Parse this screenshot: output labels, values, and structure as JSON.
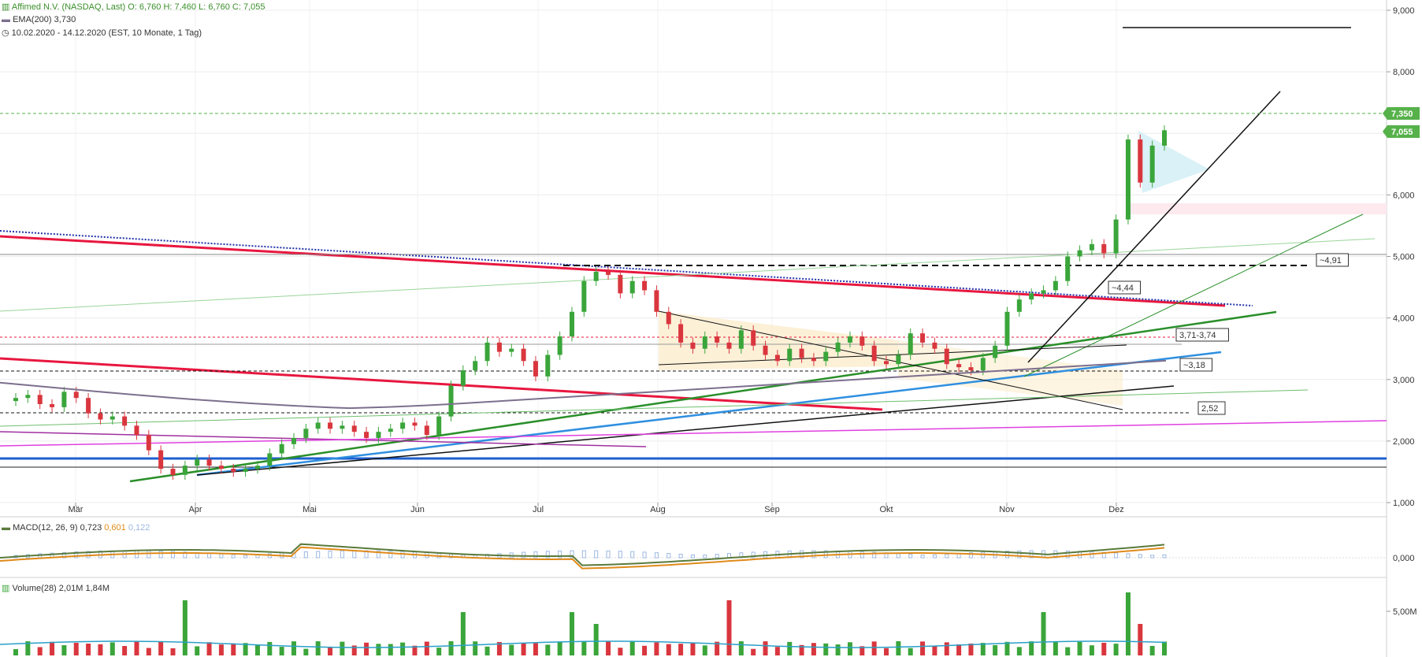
{
  "header": {
    "instrument": "Affimed N.V. (NASDAQ, Last)",
    "ohlc": "O: 6,760  H: 7,460  L: 6,760  C: 7,055",
    "ema_label": "EMA(200)",
    "ema_value": "3,730",
    "period": "10.02.2020 - 14.12.2020",
    "period_detail": "(EST, 10 Monate, 1 Tag)"
  },
  "colors": {
    "up": "#3aa53a",
    "down": "#d9363e",
    "red_line": "#e8173f",
    "blue_line": "#2f8fe0",
    "ema": "#7c6f8e",
    "magenta": "#e040e0",
    "macd": "#5a7a3a",
    "signal": "#e08a1a",
    "hist": "#9cb8e0",
    "price_badge": "#56b14a"
  },
  "chart_data": [
    {
      "type": "candlestick",
      "title": "Affimed N.V. (NASDAQ, Last)",
      "ylim": [
        1.0,
        9.0
      ],
      "yticks": [
        "1,000",
        "2,000",
        "3,000",
        "4,000",
        "5,000",
        "6,000",
        "7,000",
        "8,000",
        "9,000"
      ],
      "xticks": [
        "Mär",
        "Apr",
        "Mai",
        "Jun",
        "Jul",
        "Aug",
        "Sep",
        "Okt",
        "Nov",
        "Dez"
      ],
      "price_labels": [
        "7,350",
        "7,055"
      ],
      "annotations": [
        "~4,91",
        "~4,44",
        "3,71-3,74",
        "~3,18",
        "2,52"
      ],
      "close_path": [
        2.7,
        2.75,
        2.6,
        2.55,
        2.8,
        2.7,
        2.45,
        2.35,
        2.4,
        2.25,
        2.1,
        1.85,
        1.55,
        1.45,
        1.6,
        1.7,
        1.6,
        1.55,
        1.5,
        1.55,
        1.6,
        1.8,
        1.95,
        2.05,
        2.2,
        2.3,
        2.2,
        2.25,
        2.15,
        2.05,
        2.15,
        2.2,
        2.3,
        2.25,
        2.1,
        2.4,
        2.9,
        3.15,
        3.3,
        3.6,
        3.45,
        3.5,
        3.3,
        3.05,
        3.4,
        3.7,
        4.1,
        4.6,
        4.75,
        4.7,
        4.4,
        4.6,
        4.45,
        4.1,
        3.9,
        3.6,
        3.5,
        3.7,
        3.6,
        3.5,
        3.8,
        3.55,
        3.4,
        3.3,
        3.5,
        3.35,
        3.3,
        3.45,
        3.6,
        3.7,
        3.55,
        3.3,
        3.25,
        3.4,
        3.75,
        3.6,
        3.5,
        3.25,
        3.2,
        3.15,
        3.35,
        3.55,
        4.1,
        4.3,
        4.4,
        4.45,
        4.6,
        5.0,
        5.1,
        5.2,
        5.05,
        5.6,
        6.9,
        6.2,
        6.8,
        7.05
      ],
      "ema200": 3.73
    },
    {
      "type": "line",
      "title": "MACD(12, 26, 9)",
      "series": [
        {
          "name": "MACD",
          "last": "0,723"
        },
        {
          "name": "Signal",
          "last": "0,601"
        },
        {
          "name": "Histogram",
          "last": "0,122"
        }
      ],
      "yticks": [
        "0,000"
      ]
    },
    {
      "type": "bar",
      "title": "Volume(28)",
      "series": [
        {
          "name": "Volume",
          "last": "2,01M"
        },
        {
          "name": "Average",
          "last": "1,84M"
        }
      ],
      "yticks": [
        "5,00M"
      ]
    }
  ]
}
